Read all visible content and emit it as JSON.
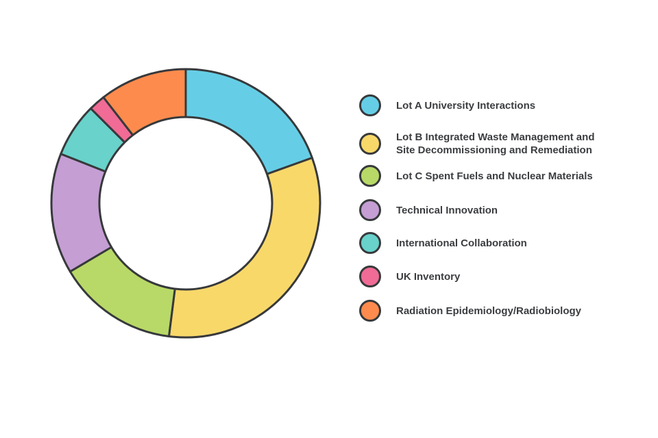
{
  "chart_data": {
    "type": "pie",
    "variant": "donut",
    "legend_position": "right",
    "slices": [
      {
        "label": "Lot A University Interactions",
        "value": 19.5,
        "color": "#65cee6"
      },
      {
        "label": "Lot B Integrated Waste Management and Site Decommissioning and Remediation",
        "label_lines": [
          "Lot B Integrated Waste Management and",
          "Site Decommissioning and Remediation"
        ],
        "value": 32.5,
        "color": "#f9d86a"
      },
      {
        "label": "Lot C Spent Fuels and Nuclear Materials",
        "value": 14.5,
        "color": "#b8d967"
      },
      {
        "label": "Technical Innovation",
        "value": 14.5,
        "color": "#c59ed4"
      },
      {
        "label": "International Collaboration",
        "value": 6.5,
        "color": "#68d2cb"
      },
      {
        "label": "UK Inventory",
        "value": 2.0,
        "color": "#f06b95"
      },
      {
        "label": "Radiation Epidemiology/Radiobiology",
        "value": 10.5,
        "color": "#fd8b4d"
      }
    ],
    "outline_color": "#37393b"
  }
}
